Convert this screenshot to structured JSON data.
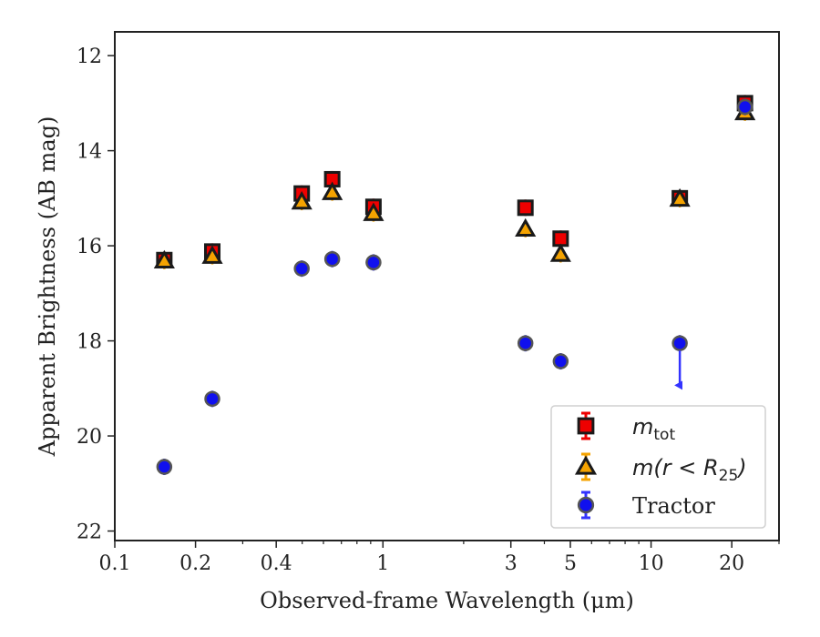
{
  "chart_data": {
    "type": "scatter",
    "xlabel": "Observed-frame Wavelength (μm)",
    "ylabel": "Apparent Brightness (AB mag)",
    "xscale": "log",
    "xlim": [
      0.1,
      30
    ],
    "ylim": [
      22.2,
      11.5
    ],
    "y_inverted": true,
    "grid": false,
    "legend_position": "lower-right",
    "x_ticks": [
      {
        "value": 0.1,
        "label": "0.1"
      },
      {
        "value": 0.2,
        "label": "0.2"
      },
      {
        "value": 0.4,
        "label": "0.4"
      },
      {
        "value": 1,
        "label": "1"
      },
      {
        "value": 3,
        "label": "3"
      },
      {
        "value": 5,
        "label": "5"
      },
      {
        "value": 10,
        "label": "10"
      },
      {
        "value": 20,
        "label": "20"
      }
    ],
    "y_ticks": [
      {
        "value": 12,
        "label": "12"
      },
      {
        "value": 14,
        "label": "14"
      },
      {
        "value": 16,
        "label": "16"
      },
      {
        "value": 18,
        "label": "18"
      },
      {
        "value": 20,
        "label": "20"
      },
      {
        "value": 22,
        "label": "22"
      }
    ],
    "series": [
      {
        "name": "m_tot",
        "legend_main": "m",
        "legend_sub": "tot",
        "marker": "square",
        "color": "#ee0000",
        "edge": "#1a1a1a",
        "errcolor": "#ee0000",
        "x": [
          0.153,
          0.231,
          0.498,
          0.647,
          0.922,
          3.4,
          4.6,
          12.8,
          22.4
        ],
        "y": [
          16.3,
          16.12,
          14.9,
          14.6,
          15.18,
          15.2,
          15.85,
          15.0,
          13.0
        ]
      },
      {
        "name": "m(r < R25)",
        "legend_main": "m(r < R",
        "legend_sub": "25",
        "legend_tail": ")",
        "marker": "triangle",
        "color": "#f5a300",
        "edge": "#1a1a1a",
        "errcolor": "#f5a300",
        "x": [
          0.153,
          0.231,
          0.498,
          0.647,
          0.922,
          3.4,
          4.6,
          12.8,
          22.4
        ],
        "y": [
          16.32,
          16.22,
          15.08,
          14.88,
          15.32,
          15.65,
          16.18,
          15.02,
          13.2
        ]
      },
      {
        "name": "Tractor",
        "marker": "circle",
        "color": "#1010ee",
        "edge": "#555555",
        "errcolor": "#3333ff",
        "x": [
          0.153,
          0.231,
          0.498,
          0.647,
          0.922,
          3.4,
          4.6,
          12.8,
          22.4
        ],
        "y": [
          20.65,
          19.22,
          16.48,
          16.28,
          16.35,
          18.05,
          18.43,
          18.05,
          13.08
        ],
        "upper_limit_index": 7,
        "upper_limit_to": 19.05
      }
    ]
  }
}
